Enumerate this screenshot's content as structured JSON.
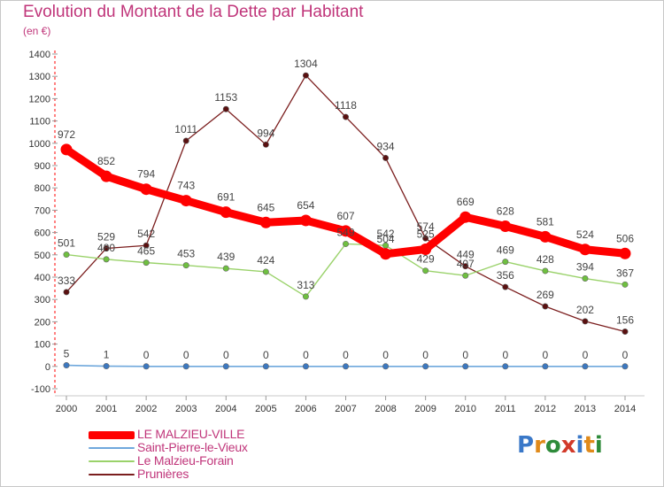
{
  "title": "Evolution du Montant de la Dette par Habitant",
  "unit": "(en €)",
  "logo": {
    "letters": [
      "P",
      "r",
      "o",
      "x",
      "i",
      "t",
      "i"
    ],
    "colors": [
      "#3a78c8",
      "#e08a1a",
      "#2e8b3a",
      "#d23a2a",
      "#3a78c8",
      "#e08a1a",
      "#2e8b3a"
    ]
  },
  "chart_data": {
    "type": "line",
    "x": [
      2000,
      2001,
      2002,
      2003,
      2004,
      2005,
      2006,
      2007,
      2008,
      2009,
      2010,
      2011,
      2012,
      2013,
      2014
    ],
    "ylim": [
      -100,
      1400
    ],
    "yticks": [
      -100,
      0,
      100,
      200,
      300,
      400,
      500,
      600,
      700,
      800,
      900,
      1000,
      1100,
      1200,
      1300,
      1400
    ],
    "grid": false,
    "legend_position": "bottom-left",
    "series": [
      {
        "name": "LE MALZIEU-VILLE",
        "values": [
          972,
          852,
          794,
          743,
          691,
          645,
          654,
          607,
          504,
          525,
          669,
          628,
          581,
          524,
          506
        ],
        "labels": [
          "972",
          "852",
          "794",
          "743",
          "691",
          "645",
          "654",
          "607",
          "504",
          "525",
          "669",
          "628",
          "581",
          "524",
          "506"
        ],
        "color": "#ff0000",
        "marker_color": "#ff0000"
      },
      {
        "name": "Saint-Pierre-le-Vieux",
        "values": [
          5,
          1,
          0,
          0,
          0,
          0,
          0,
          0,
          0,
          0,
          0,
          0,
          0,
          0,
          0
        ],
        "labels": [
          "5",
          "1",
          "0",
          "0",
          "0",
          "0",
          "0",
          "0",
          "0",
          "0",
          "0",
          "0",
          "0",
          "0",
          "0"
        ],
        "color": "#6fa8dc",
        "marker_color": "#3c78c0"
      },
      {
        "name": "Le Malzieu-Forain",
        "values": [
          501,
          480,
          465,
          453,
          439,
          424,
          313,
          549,
          542,
          429,
          407,
          469,
          428,
          394,
          367
        ],
        "labels": [
          "501",
          "480",
          "465",
          "453",
          "439",
          "424",
          "313",
          "549",
          "542",
          "429",
          "407",
          "469",
          "428",
          "394",
          "367"
        ],
        "color": "#9ad26a",
        "marker_color": "#6fc040"
      },
      {
        "name": "Prunières",
        "values": [
          333,
          529,
          542,
          1011,
          1153,
          994,
          1304,
          1118,
          934,
          574,
          449,
          356,
          269,
          202,
          156
        ],
        "labels": [
          "333",
          "529",
          "542",
          "1011",
          "1153",
          "994",
          "1304",
          "1118",
          "934",
          "574",
          "449",
          "356",
          "269",
          "202",
          "156"
        ],
        "color": "#7b1e1e",
        "marker_color": "#5a1010"
      }
    ]
  }
}
